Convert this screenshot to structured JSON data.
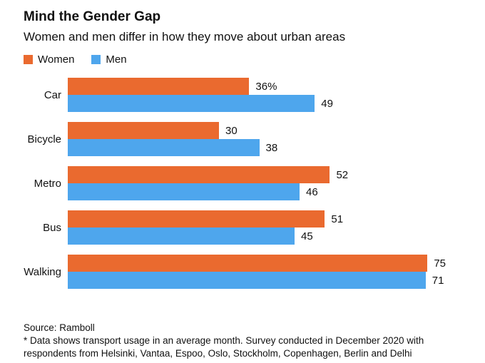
{
  "header": {
    "title": "Mind the Gender Gap",
    "subtitle": "Women and men differ in how they move about urban areas"
  },
  "legend": [
    {
      "label": "Women",
      "color": "#EA6A2F"
    },
    {
      "label": "Men",
      "color": "#4EA6ED"
    }
  ],
  "chart_data": {
    "type": "bar",
    "orientation": "horizontal",
    "title": "Mind the Gender Gap",
    "subtitle": "Women and men differ in how they move about urban areas",
    "categories": [
      "Car",
      "Bicycle",
      "Metro",
      "Bus",
      "Walking"
    ],
    "series": [
      {
        "name": "Women",
        "color": "#EA6A2F",
        "values": [
          36,
          30,
          52,
          51,
          75
        ],
        "value_labels": [
          "36%",
          "30",
          "52",
          "51",
          "75"
        ]
      },
      {
        "name": "Men",
        "color": "#4EA6ED",
        "values": [
          49,
          38,
          46,
          45,
          71
        ],
        "value_labels": [
          "49",
          "38",
          "46",
          "45",
          "71"
        ]
      }
    ],
    "xlim": [
      0,
      75
    ],
    "grid": false,
    "legend_position": "top-left",
    "value_unit": "percent"
  },
  "footer": {
    "source": "Source: Ramboll",
    "footnote_lines": [
      "* Data shows transport usage in an average month. Survey conducted in December 2020 with",
      "respondents from Helsinki, Vantaa, Espoo, Oslo, Stockholm, Copenhagen, Berlin and Delhi"
    ]
  }
}
